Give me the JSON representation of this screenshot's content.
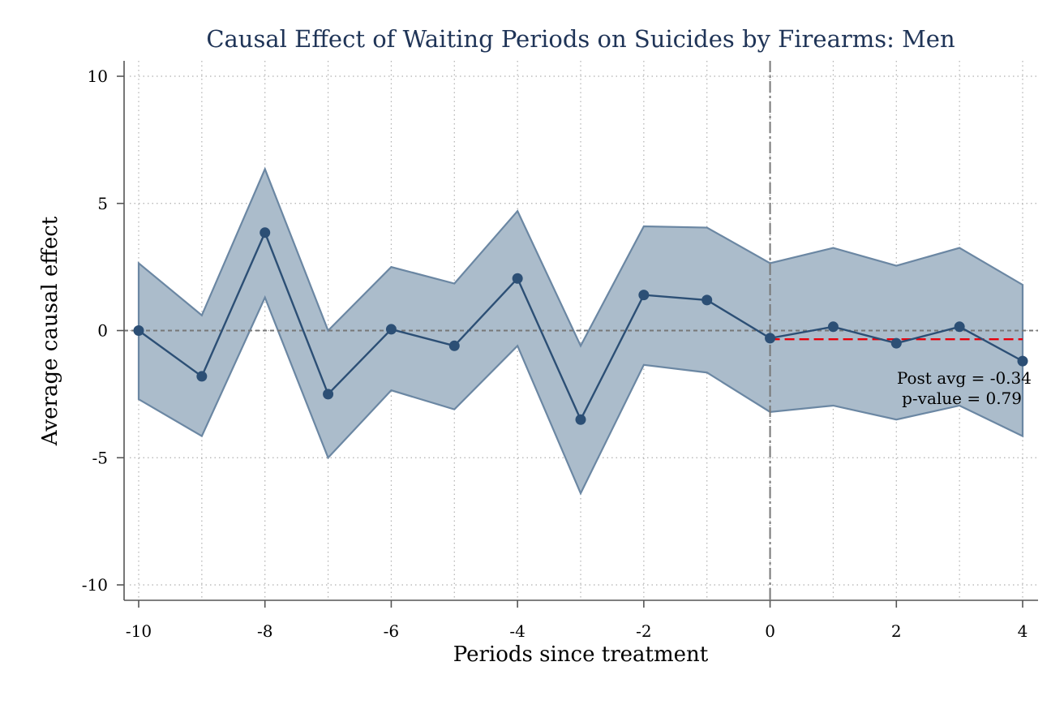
{
  "chart_data": {
    "type": "line",
    "title": "Causal Effect of Waiting Periods on Suicides by Firearms: Men",
    "xlabel": "Periods since treatment",
    "ylabel": "Average causal effect",
    "xlim": [
      -10,
      4
    ],
    "ylim": [
      -10,
      10
    ],
    "x_ticks": [
      -10,
      -8,
      -6,
      -4,
      -2,
      0,
      2,
      4
    ],
    "y_ticks": [
      10,
      5,
      0,
      -5,
      -10
    ],
    "x_tick_labels": [
      "-10",
      "-8",
      "-6",
      "-4",
      "-2",
      "0",
      "2",
      "4"
    ],
    "y_tick_labels": [
      "10",
      "5",
      "0",
      "-5",
      "-10"
    ],
    "grid": true,
    "treatment_line_x": 0,
    "reference_line_y": 0,
    "x": [
      -10,
      -9,
      -8,
      -7,
      -6,
      -5,
      -4,
      -3,
      -2,
      -1,
      0,
      1,
      2,
      3,
      4
    ],
    "estimate": [
      0.0,
      -1.8,
      3.85,
      -2.5,
      0.05,
      -0.6,
      2.05,
      -3.5,
      1.4,
      1.2,
      -0.3,
      0.15,
      -0.5,
      0.15,
      -1.2
    ],
    "ci_upper": [
      2.65,
      0.6,
      6.35,
      0.0,
      2.5,
      1.85,
      4.7,
      -0.6,
      4.1,
      4.05,
      2.65,
      3.25,
      2.55,
      3.25,
      1.8
    ],
    "ci_lower": [
      -2.7,
      -4.15,
      1.3,
      -5.0,
      -2.35,
      -3.1,
      -0.6,
      -6.4,
      -1.35,
      -1.65,
      -3.2,
      -2.95,
      -3.5,
      -2.95,
      -4.15
    ],
    "post_avg": {
      "value": -0.34,
      "x_start": 0,
      "x_end": 4
    },
    "annotations": [
      "Post avg = -0.34",
      "p-value = 0.79"
    ],
    "colors": {
      "title": "#1f3457",
      "line": "#2c4f75",
      "band_fill": "#abbccb",
      "band_edge": "#6b87a3",
      "post_avg": "#e8000b",
      "grid": "#b0b0b0",
      "ref": "#777777"
    }
  }
}
